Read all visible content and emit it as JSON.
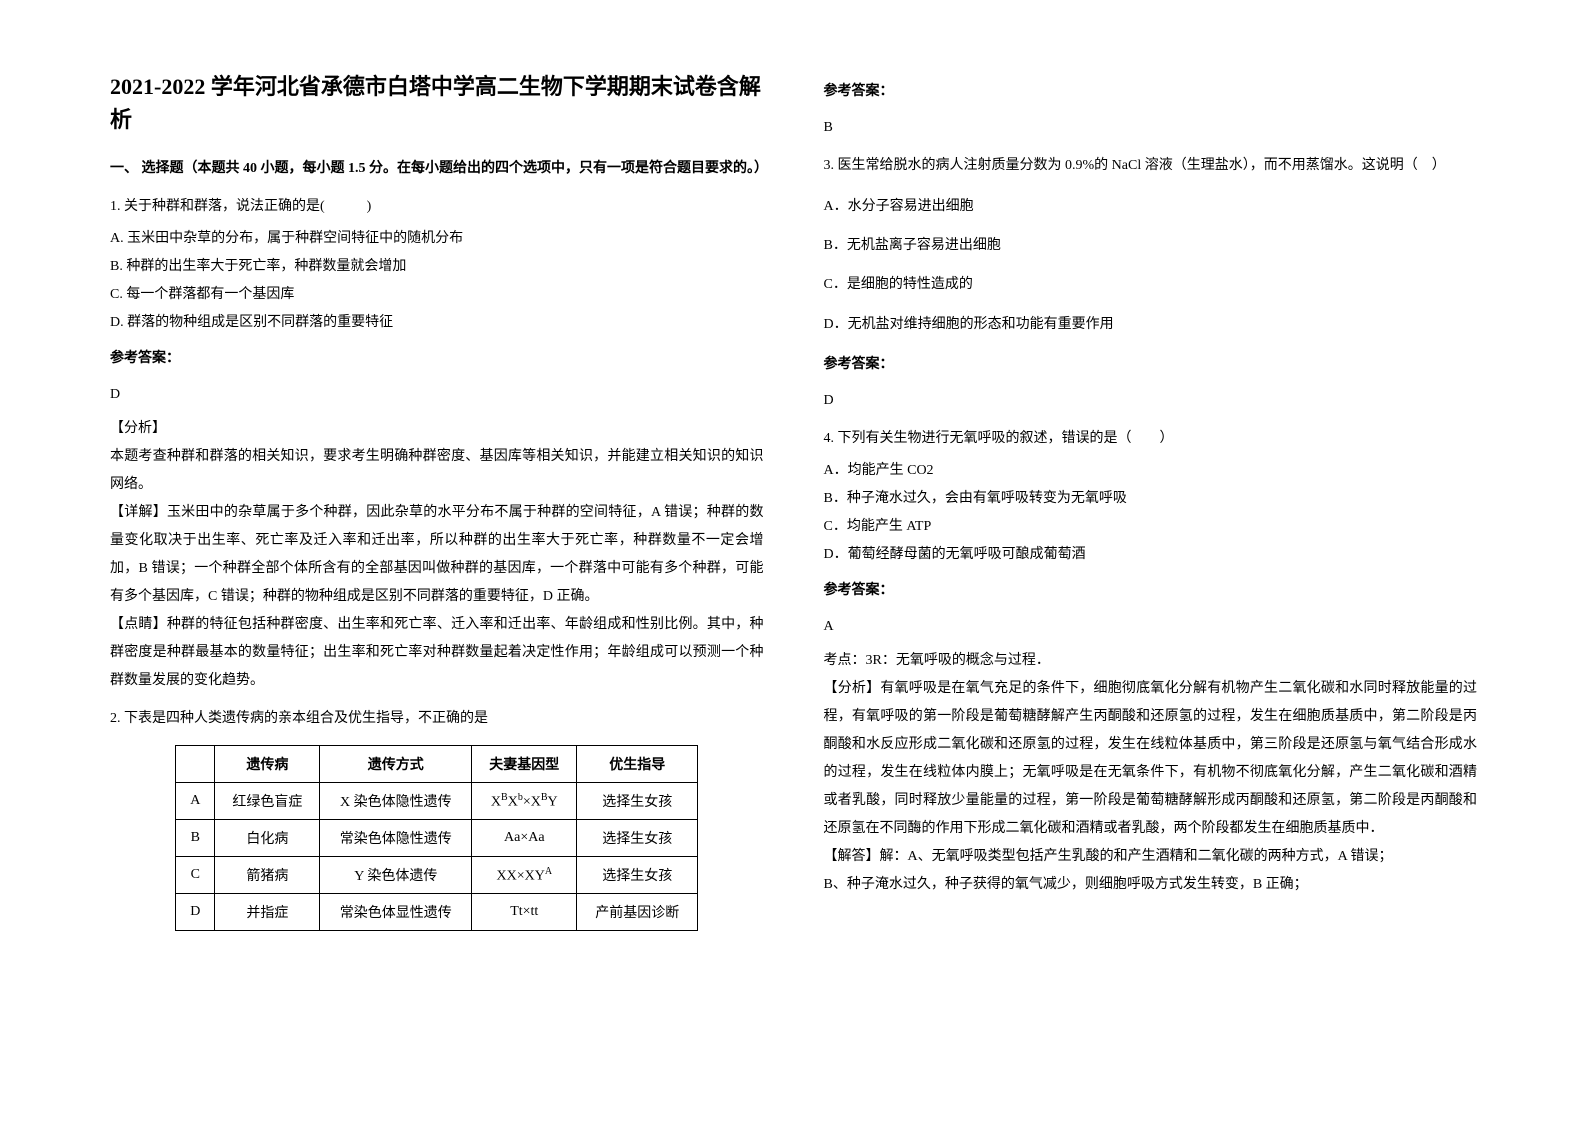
{
  "title": "2021-2022 学年河北省承德市白塔中学高二生物下学期期末试卷含解析",
  "section1_header": "一、 选择题（本题共 40 小题，每小题 1.5 分。在每小题给出的四个选项中，只有一项是符合题目要求的。）",
  "q1": {
    "stem": "1. 关于种群和群落，说法正确的是(　　　)",
    "optA": "A.  玉米田中杂草的分布，属于种群空间特征中的随机分布",
    "optB": "B.  种群的出生率大于死亡率，种群数量就会增加",
    "optC": "C.  每一个群落都有一个基因库",
    "optD": "D.  群落的物种组成是区别不同群落的重要特征",
    "answer_label": "参考答案：",
    "answer": "D",
    "analysis_label": "【分析】",
    "analysis1": "本题考查种群和群落的相关知识，要求考生明确种群密度、基因库等相关知识，并能建立相关知识的知识网络。",
    "detail": "【详解】玉米田中的杂草属于多个种群，因此杂草的水平分布不属于种群的空间特征，A 错误；种群的数量变化取决于出生率、死亡率及迁入率和迁出率，所以种群的出生率大于死亡率，种群数量不一定会增加，B 错误；一个种群全部个体所含有的全部基因叫做种群的基因库，一个群落中可能有多个种群，可能有多个基因库，C 错误；种群的物种组成是区别不同群落的重要特征，D 正确。",
    "tip": "【点睛】种群的特征包括种群密度、出生率和死亡率、迁入率和迁出率、年龄组成和性别比例。其中，种群密度是种群最基本的数量特征；出生率和死亡率对种群数量起着决定性作用；年龄组成可以预测一个种群数量发展的变化趋势。"
  },
  "q2": {
    "stem": "2. 下表是四种人类遗传病的亲本组合及优生指导，不正确的是",
    "table": {
      "headers": [
        "",
        "遗传病",
        "遗传方式",
        "夫妻基因型",
        "优生指导"
      ],
      "rows": [
        [
          "A",
          "红绿色盲症",
          "X 染色体隐性遗传",
          "XBXb×XBY",
          "选择生女孩"
        ],
        [
          "B",
          "白化病",
          "常染色体隐性遗传",
          "Aa×Aa",
          "选择生女孩"
        ],
        [
          "C",
          "箭猪病",
          "Y 染色体遗传",
          "XX×XYA",
          "选择生女孩"
        ],
        [
          "D",
          "并指症",
          "常染色体显性遗传",
          "Tt×tt",
          "产前基因诊断"
        ]
      ]
    }
  },
  "right": {
    "answer_label2": "参考答案：",
    "answer2": "B",
    "q3": {
      "stem": "3. 医生常给脱水的病人注射质量分数为 0.9%的 NaCl 溶液（生理盐水），而不用蒸馏水。这说明（　）",
      "optA": "A．水分子容易进出细胞",
      "optB": "B．无机盐离子容易进出细胞",
      "optC": "C．是细胞的特性造成的",
      "optD": "D．无机盐对维持细胞的形态和功能有重要作用",
      "answer_label": "参考答案：",
      "answer": "D"
    },
    "q4": {
      "stem": "4. 下列有关生物进行无氧呼吸的叙述，错误的是（　　）",
      "optA": "A．均能产生 CO2",
      "optB": "B．种子淹水过久，会由有氧呼吸转变为无氧呼吸",
      "optC": "C．均能产生 ATP",
      "optD": "D．葡萄经酵母菌的无氧呼吸可酿成葡萄酒",
      "answer_label": "参考答案：",
      "answer": "A",
      "kaodian": "考点：3R：无氧呼吸的概念与过程．",
      "analysis": "【分析】有氧呼吸是在氧气充足的条件下，细胞彻底氧化分解有机物产生二氧化碳和水同时释放能量的过程，有氧呼吸的第一阶段是葡萄糖酵解产生丙酮酸和还原氢的过程，发生在细胞质基质中，第二阶段是丙酮酸和水反应形成二氧化碳和还原氢的过程，发生在线粒体基质中，第三阶段是还原氢与氧气结合形成水的过程，发生在线粒体内膜上；无氧呼吸是在无氧条件下，有机物不彻底氧化分解，产生二氧化碳和酒精或者乳酸，同时释放少量能量的过程，第一阶段是葡萄糖酵解形成丙酮酸和还原氢，第二阶段是丙酮酸和还原氢在不同酶的作用下形成二氧化碳和酒精或者乳酸，两个阶段都发生在细胞质基质中．",
      "jieda": "【解答】解：A、无氧呼吸类型包括产生乳酸的和产生酒精和二氧化碳的两种方式，A 错误；",
      "jiedaB": "B、种子淹水过久，种子获得的氧气减少，则细胞呼吸方式发生转变，B 正确；"
    }
  }
}
